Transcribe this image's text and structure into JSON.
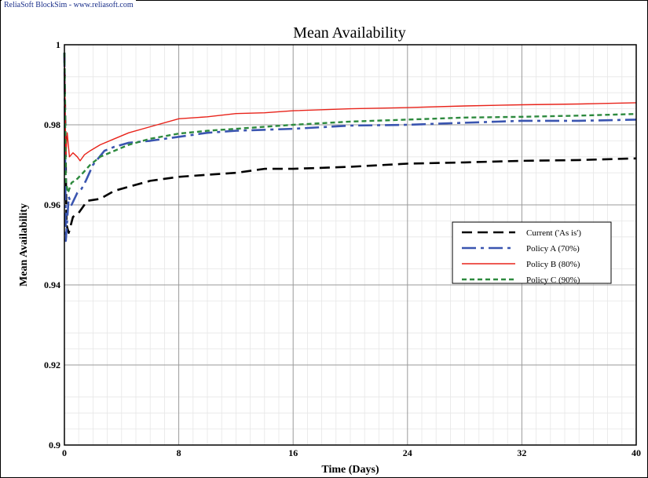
{
  "header": {
    "source_label": "ReliaSoft BlockSim - www.reliasoft.com"
  },
  "chart_data": {
    "type": "line",
    "title": "Mean Availability",
    "xlabel": "Time (Days)",
    "ylabel": "Mean Availability",
    "xlim": [
      0,
      40
    ],
    "ylim": [
      0.9,
      1.0
    ],
    "x_ticks": [
      "0",
      "8",
      "16",
      "24",
      "32",
      "40"
    ],
    "y_ticks": [
      "0.9",
      "0.92",
      "0.94",
      "0.96",
      "0.98",
      "1"
    ],
    "grid": true,
    "legend_position": "right-center",
    "series": [
      {
        "name": "Current ('As is')",
        "color": "#000000",
        "dash": "long-dash",
        "points": [
          [
            0,
            0.998
          ],
          [
            0.15,
            0.955
          ],
          [
            0.3,
            0.953
          ],
          [
            0.6,
            0.957
          ],
          [
            1,
            0.958
          ],
          [
            1.6,
            0.961
          ],
          [
            2.5,
            0.9615
          ],
          [
            3.5,
            0.9635
          ],
          [
            4.5,
            0.9645
          ],
          [
            6,
            0.966
          ],
          [
            8,
            0.967
          ],
          [
            10,
            0.9675
          ],
          [
            12,
            0.968
          ],
          [
            14,
            0.969
          ],
          [
            16,
            0.969
          ],
          [
            20,
            0.9695
          ],
          [
            24,
            0.9703
          ],
          [
            28,
            0.9706
          ],
          [
            32,
            0.971
          ],
          [
            36,
            0.9712
          ],
          [
            40,
            0.9716
          ]
        ]
      },
      {
        "name": "Policy A (70%)",
        "color": "#3a55b0",
        "dash": "dash-dot",
        "points": [
          [
            0,
            0.998
          ],
          [
            0.1,
            0.951
          ],
          [
            0.3,
            0.962
          ],
          [
            0.5,
            0.96
          ],
          [
            0.9,
            0.963
          ],
          [
            1.2,
            0.964
          ],
          [
            1.5,
            0.966
          ],
          [
            2,
            0.97
          ],
          [
            2.8,
            0.9735
          ],
          [
            3.5,
            0.9745
          ],
          [
            4.5,
            0.9755
          ],
          [
            6,
            0.976
          ],
          [
            8,
            0.977
          ],
          [
            10,
            0.978
          ],
          [
            12,
            0.9785
          ],
          [
            16,
            0.979
          ],
          [
            20,
            0.9798
          ],
          [
            24,
            0.98
          ],
          [
            28,
            0.9805
          ],
          [
            32,
            0.981
          ],
          [
            36,
            0.981
          ],
          [
            40,
            0.9813
          ]
        ]
      },
      {
        "name": "Policy B (80%)",
        "color": "#e8231a",
        "dash": "solid",
        "points": [
          [
            0,
            0.998
          ],
          [
            0.1,
            0.972
          ],
          [
            0.2,
            0.978
          ],
          [
            0.35,
            0.972
          ],
          [
            0.6,
            0.973
          ],
          [
            0.9,
            0.972
          ],
          [
            1.1,
            0.971
          ],
          [
            1.4,
            0.9725
          ],
          [
            1.8,
            0.9735
          ],
          [
            2.5,
            0.975
          ],
          [
            3.5,
            0.9765
          ],
          [
            4.5,
            0.978
          ],
          [
            6,
            0.9795
          ],
          [
            8,
            0.9815
          ],
          [
            10,
            0.982
          ],
          [
            12,
            0.9828
          ],
          [
            14,
            0.983
          ],
          [
            16,
            0.9835
          ],
          [
            20,
            0.984
          ],
          [
            24,
            0.9843
          ],
          [
            28,
            0.9847
          ],
          [
            32,
            0.985
          ],
          [
            36,
            0.9852
          ],
          [
            40,
            0.9855
          ]
        ]
      },
      {
        "name": "Policy C (90%)",
        "color": "#2d8a3e",
        "dash": "short-dash",
        "points": [
          [
            0,
            0.998
          ],
          [
            0.1,
            0.966
          ],
          [
            0.25,
            0.963
          ],
          [
            0.5,
            0.9655
          ],
          [
            0.9,
            0.9665
          ],
          [
            1.3,
            0.968
          ],
          [
            1.8,
            0.97
          ],
          [
            2.5,
            0.972
          ],
          [
            3.5,
            0.9735
          ],
          [
            4.5,
            0.975
          ],
          [
            6,
            0.9765
          ],
          [
            8,
            0.9778
          ],
          [
            10,
            0.9785
          ],
          [
            12,
            0.979
          ],
          [
            16,
            0.98
          ],
          [
            20,
            0.9808
          ],
          [
            24,
            0.9813
          ],
          [
            28,
            0.9818
          ],
          [
            32,
            0.982
          ],
          [
            36,
            0.9823
          ],
          [
            40,
            0.9827
          ]
        ]
      }
    ]
  }
}
